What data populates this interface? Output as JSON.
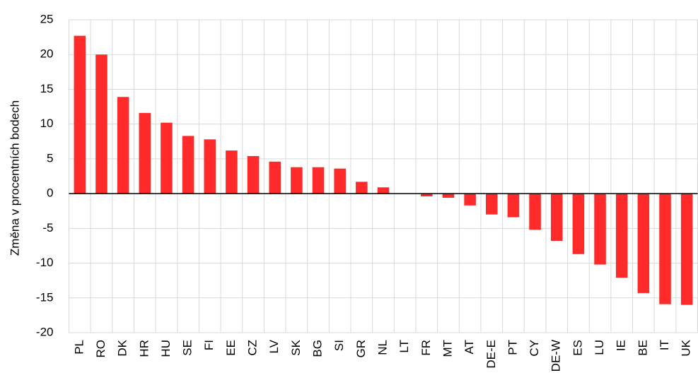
{
  "chart_data": {
    "type": "bar",
    "y_label": "Změna v procentních bodech",
    "categories": [
      "PL",
      "RO",
      "DK",
      "HR",
      "HU",
      "SE",
      "FI",
      "EE",
      "CZ",
      "LV",
      "SK",
      "BG",
      "SI",
      "GR",
      "NL",
      "LT",
      "FR",
      "MT",
      "AT",
      "DE-E",
      "PT",
      "CY",
      "DE-W",
      "ES",
      "LU",
      "IE",
      "BE",
      "IT",
      "UK"
    ],
    "values": [
      22.7,
      20,
      13.9,
      11.6,
      10.2,
      8.3,
      7.8,
      6.2,
      5.4,
      4.6,
      3.8,
      3.8,
      3.6,
      1.7,
      0.9,
      0,
      -0.4,
      -0.6,
      -1.7,
      -3,
      -3.4,
      -5.2,
      -6.8,
      -8.7,
      -10.2,
      -12.1,
      -14.3,
      -15.9,
      -16
    ],
    "color": "#ff2b2b",
    "ylim": [
      -20,
      25
    ],
    "yticks": [
      -20,
      -15,
      -10,
      -5,
      0,
      5,
      10,
      15,
      20,
      25
    ],
    "grid": true
  }
}
